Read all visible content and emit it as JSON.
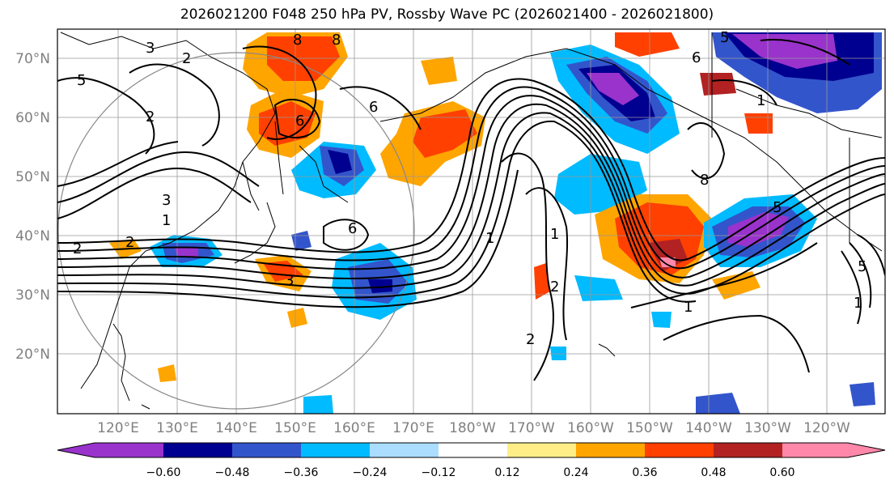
{
  "title": "2026021200 F048 250 hPa PV, Rossby Wave PC (2026021400 - 2026021800)",
  "map": {
    "lat_labels": [
      "70°N",
      "60°N",
      "50°N",
      "40°N",
      "30°N",
      "20°N"
    ],
    "lon_labels": [
      "120°E",
      "130°E",
      "140°E",
      "150°E",
      "160°E",
      "170°E",
      "180°W",
      "170°W",
      "160°W",
      "150°W",
      "140°W",
      "130°W",
      "120°W"
    ],
    "contour_labels": [
      "5",
      "2",
      "3",
      "2",
      "6",
      "1",
      "6",
      "1",
      "6",
      "8",
      "5",
      "3",
      "5",
      "2",
      "1",
      "6",
      "8",
      "2",
      "1",
      "1",
      "2",
      "2",
      "8",
      "3",
      "5",
      "1"
    ],
    "colors": {
      "purple": "#9933cc",
      "navy": "#000090",
      "blue": "#3355cc",
      "cyan": "#00bbff",
      "lightblue": "#aaddff",
      "yellow": "#ffee88",
      "orange": "#ffa500",
      "redorange": "#ff4000",
      "darkred": "#b22222",
      "pink": "#ff88aa"
    }
  },
  "colorbar": {
    "ticks": [
      "−0.60",
      "−0.48",
      "−0.36",
      "−0.24",
      "−0.12",
      "0.12",
      "0.24",
      "0.36",
      "0.48",
      "0.60"
    ],
    "colors": [
      "#9933cc",
      "#000090",
      "#3355cc",
      "#00bbff",
      "#aaddff",
      "#ffffff",
      "#ffee88",
      "#ffa500",
      "#ff4000",
      "#b22222",
      "#ff88aa"
    ]
  }
}
